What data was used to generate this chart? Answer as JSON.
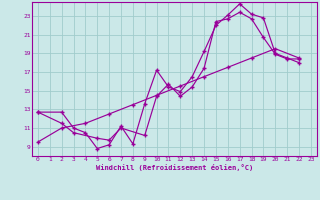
{
  "bg_color": "#cbe8e8",
  "grid_color": "#a0cccc",
  "line_color": "#990099",
  "xlabel": "Windchill (Refroidissement éolien,°C)",
  "xlim": [
    -0.5,
    23.5
  ],
  "ylim": [
    8.0,
    24.5
  ],
  "xticks": [
    0,
    1,
    2,
    3,
    4,
    5,
    6,
    7,
    8,
    9,
    10,
    11,
    12,
    13,
    14,
    15,
    16,
    17,
    18,
    19,
    20,
    21,
    22,
    23
  ],
  "yticks": [
    9,
    11,
    13,
    15,
    17,
    19,
    21,
    23
  ],
  "line1_x": [
    0,
    2,
    3,
    4,
    5,
    6,
    7,
    8,
    9,
    10,
    11,
    12,
    13,
    14,
    15,
    16,
    17,
    18,
    19,
    20,
    21,
    22
  ],
  "line1_y": [
    12.7,
    12.7,
    11.0,
    10.5,
    8.8,
    9.2,
    11.2,
    9.3,
    13.6,
    17.2,
    15.4,
    14.9,
    16.5,
    19.2,
    22.0,
    23.1,
    24.3,
    23.2,
    22.8,
    19.0,
    18.5,
    18.0
  ],
  "line2_x": [
    0,
    2,
    3,
    5,
    6,
    7,
    9,
    10,
    11,
    12,
    13,
    14,
    15,
    16,
    17,
    18,
    19,
    20,
    21,
    22
  ],
  "line2_y": [
    12.7,
    11.5,
    10.5,
    9.9,
    9.7,
    11.0,
    10.2,
    14.4,
    15.7,
    14.4,
    15.4,
    17.4,
    22.4,
    22.7,
    23.4,
    22.7,
    20.7,
    18.9,
    18.4,
    18.4
  ],
  "line3_x": [
    0,
    2,
    4,
    6,
    8,
    10,
    12,
    14,
    16,
    18,
    20,
    22
  ],
  "line3_y": [
    9.5,
    11.0,
    11.5,
    12.5,
    13.5,
    14.5,
    15.5,
    16.5,
    17.5,
    18.5,
    19.5,
    18.5
  ]
}
